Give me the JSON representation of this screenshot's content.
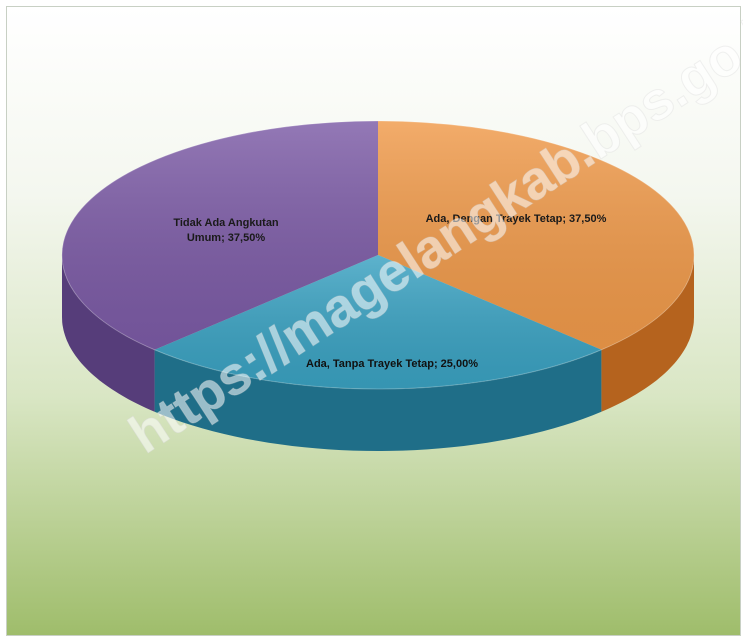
{
  "chart_data": {
    "type": "pie",
    "style": "3d",
    "legend": "none",
    "slices": [
      {
        "label": "Ada, Dengan Trayek Tetap; 37,50%",
        "value": 37.5,
        "color": "#f09a4a",
        "side_color": "#b5631e"
      },
      {
        "label": "Ada, Tanpa Trayek Tetap; 25,00%",
        "value": 25.0,
        "color": "#3aa2c2",
        "side_color": "#1f6e88"
      },
      {
        "label": "Tidak Ada Angkutan Umum; 37,50%",
        "value": 37.5,
        "color": "#7c5ba6",
        "side_color": "#563d7a"
      }
    ]
  },
  "watermark": "https://magelangkab.bps.go.id"
}
